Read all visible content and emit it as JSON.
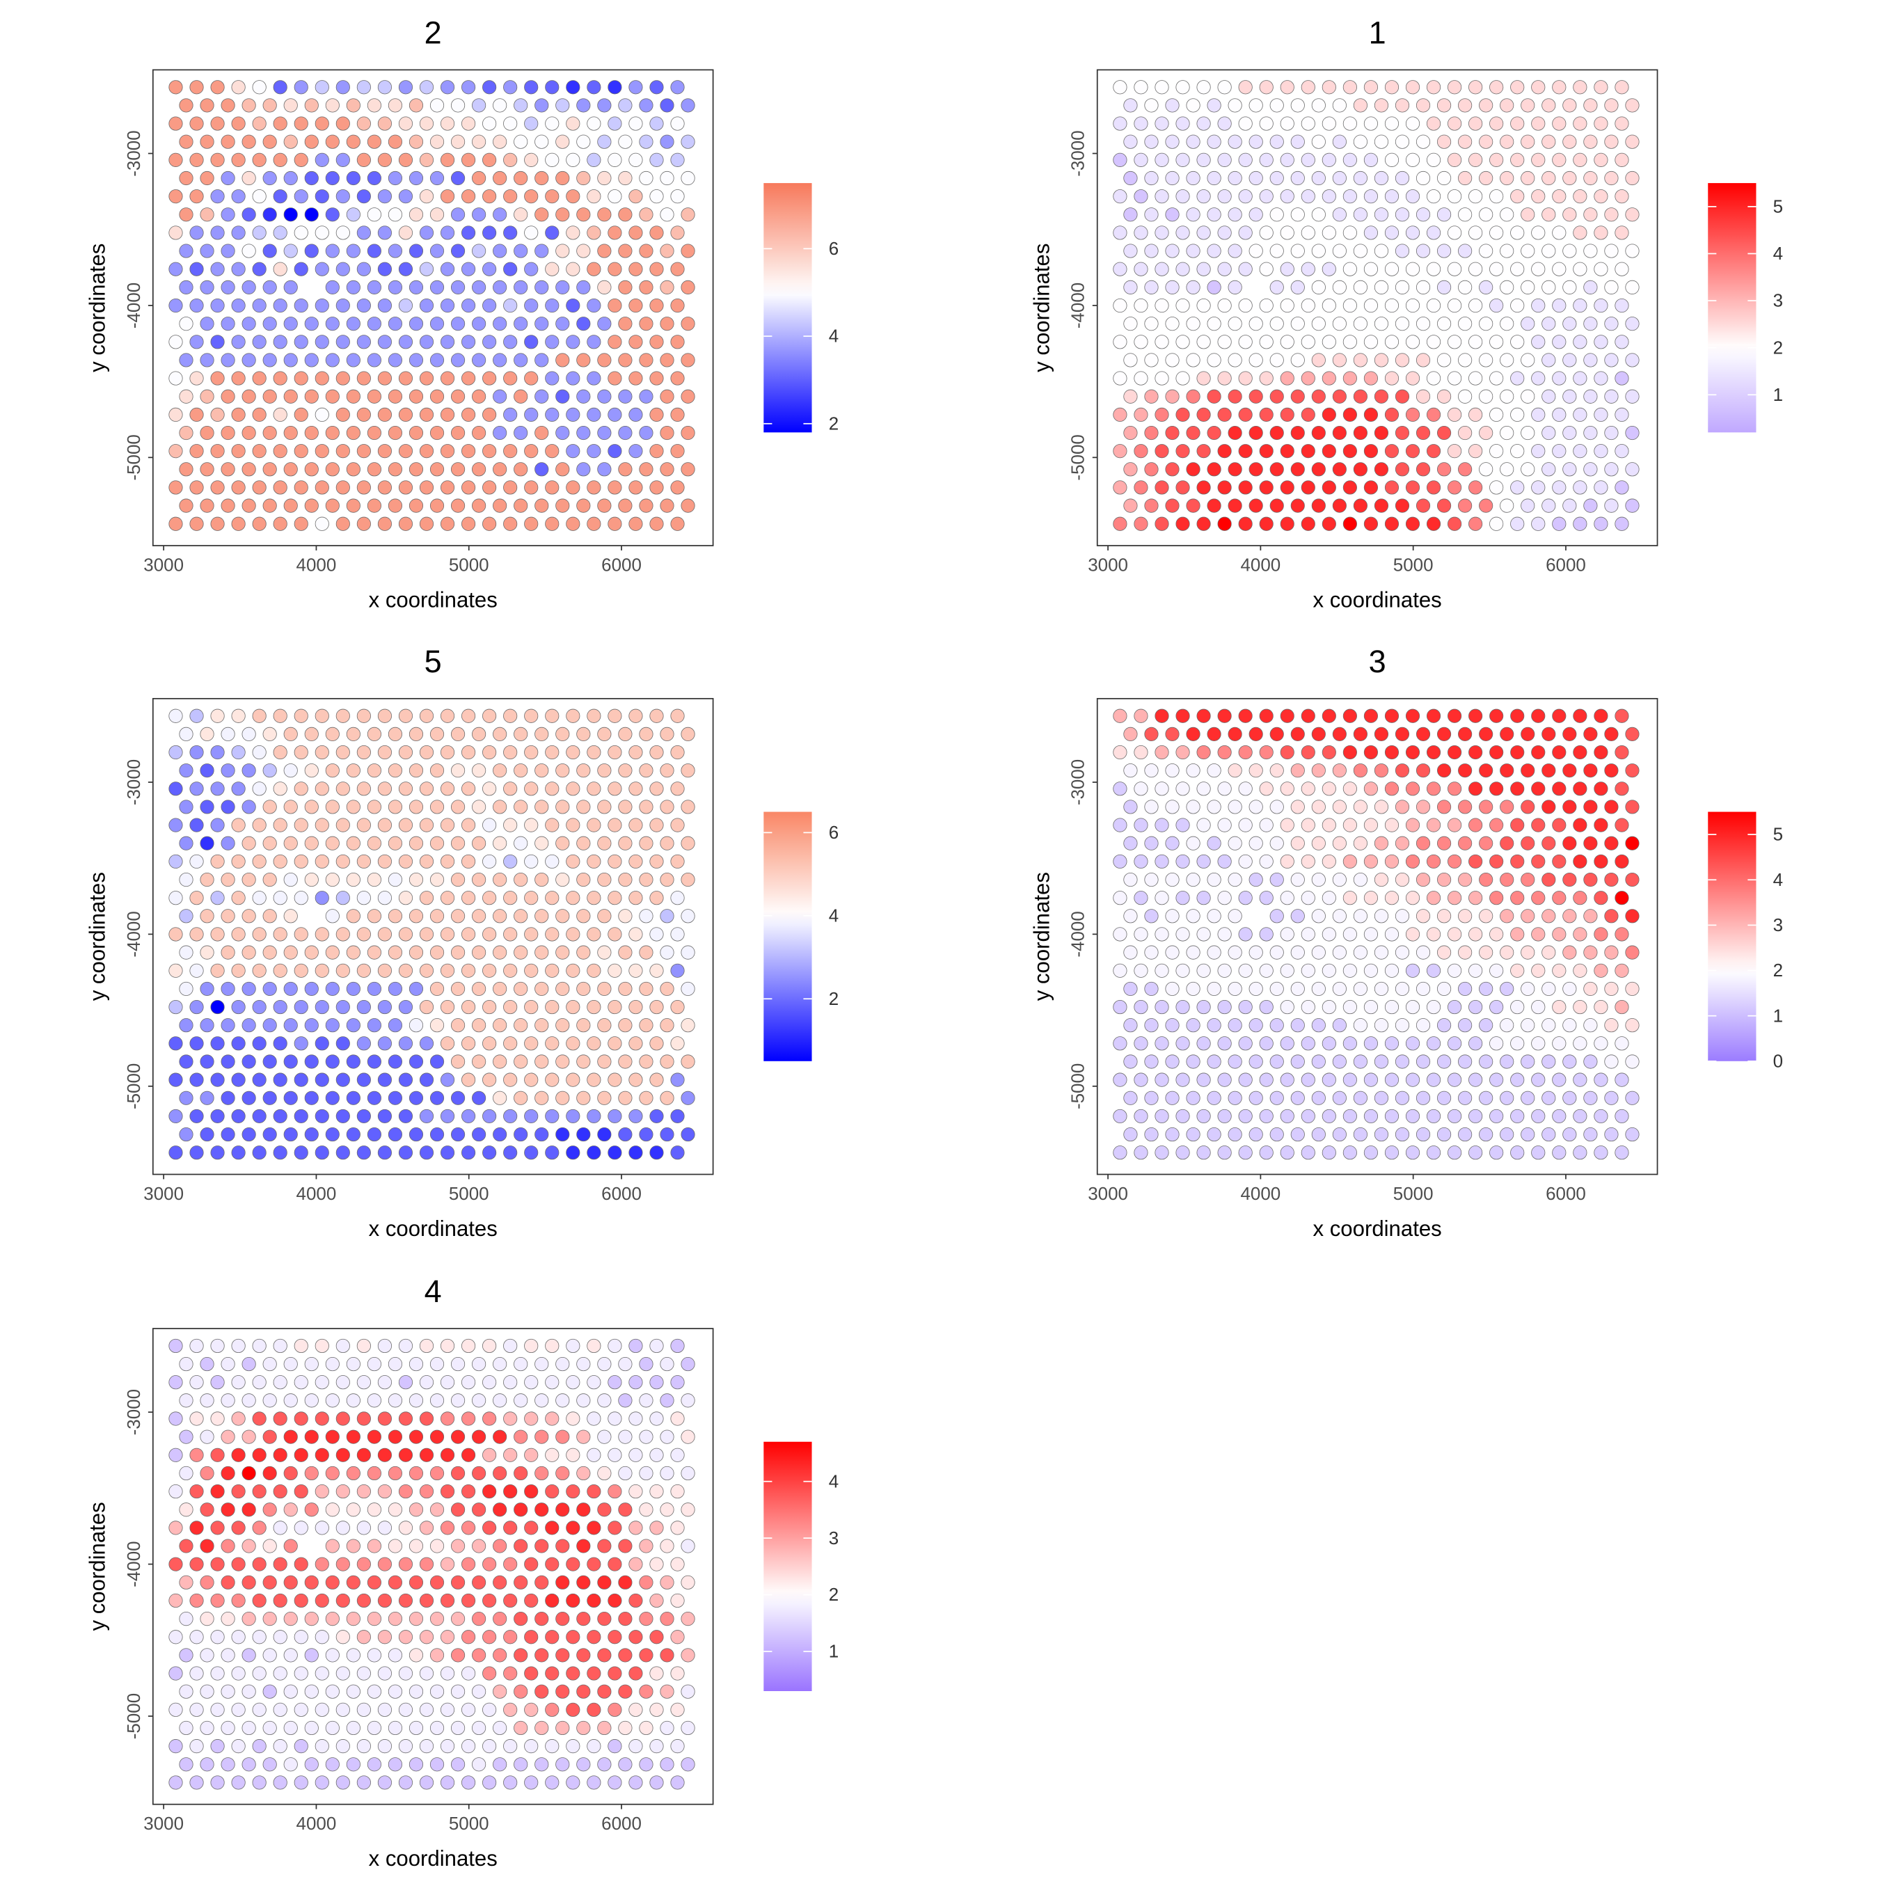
{
  "chart_data": {
    "type": "scatter",
    "layout_note_grid": "hexagonal spot grid; odd rows shifted by half x_step",
    "grid": {
      "x_start": 3079,
      "x_step": 137,
      "y_start": -2564,
      "y_step": -119.7,
      "rows": 25,
      "cols": 25
    },
    "level_encoding": "each digit 0-9 maps linearly from limits[0] to limits[1]; '-' = no spot",
    "xlabel": "x coordinates",
    "ylabel": "y coordinates",
    "xlim": [
      2930,
      6600
    ],
    "ylim": [
      -5580,
      -2450
    ],
    "xticks": [
      3000,
      4000,
      5000,
      6000
    ],
    "yticks": [
      -3000,
      -4000,
      -5000
    ],
    "panels": [
      {
        "title": "2",
        "limits": [
          1.8,
          7.5
        ],
        "midpoint": 5,
        "low": "#0000ff",
        "high": "#f7795b",
        "ticks": [
          2,
          4,
          6
        ],
        "rows": [
          "8886523434434332322121323",
          "8887767676675545434334323",
          "8888788887766665545654545",
          "8888878888876666556545434",
          "8888888338887888765545544",
          "8836332222333288888766555",
          "8833523232336888888865755",
          "8732100245566333688888757",
          "6333445553363322252678887",
          "3335242332323243336688878",
          "3233262333224333236688888",
          "333333-333333333333368878",
          "3333333333343333433238888",
          "5333333333333333333238888",
          "5323333333333333323338888",
          "3333333333333333338888888",
          "5688888888888888883338888",
          "6788888888888883832333388",
          "6878868588888888333333388",
          "7888888888888883383333388",
          "7888888888888888888332388",
          "8888888888888888828338888",
          "8888888888888888888888888",
          "8888888888888888888888888",
          "8888888588888888888888888"
        ]
      },
      {
        "title": "1",
        "limits": [
          0.2,
          5.5
        ],
        "midpoint": 2,
        "low": "#c0a8ff",
        "high": "#ff0000",
        "ticks": [
          1,
          2,
          3,
          4,
          5
        ],
        "rows": [
          "3333334444444444444444444",
          "2323233333344444444444444",
          "2222223333333334444444444",
          "2222222223233334444444444",
          "1222222222222333444444444",
          "1222222222222233444444444",
          "2122222222222223333444444",
          "1212222333222222333444444",
          "2222222333332222333333444",
          "2222223333333222233333333",
          "2222222322233333333333333",
          "222212-223333332323333233",
          "3333333333333333332322222",
          "3333333333333333333222222",
          "3333333333333333333322222",
          "3333333334444443333322222",
          "3333444455555443333222221",
          "4556777777777744333322222",
          "5567777777888766443322222",
          "5677788888888777443322221",
          "5677788888888777443322222",
          "5678888888888776633322222",
          "5677888888888777663222221",
          "5677888888888877663222121",
          "6678898888898888763221111"
        ]
      },
      {
        "title": "5",
        "limits": [
          0.5,
          6.5
        ],
        "midpoint": 4,
        "low": "#0000ff",
        "high": "#f98766",
        "ticks": [
          2,
          4,
          6
        ],
        "rows": [
          "5466777777777777777777777",
          "5655677777777777777777777",
          "4334577777777777777777777",
          "3233456777777667777777777",
          "2333567777777776777777777",
          "3223777777777767777777777",
          "3237777777777775667777777",
          "3137777777777776567777777",
          "4577777777777775455777777",
          "5777756666566777776777777",
          "5747555345567777777777775",
          "477776-577777777777776545",
          "7777777777777777777777655",
          "5677777777777777777767755",
          "6577777777777777777776663",
          "5333333333337777777777775",
          "4303333333337777777777777",
          "3333333333356777777777776",
          "2222223223333777777777776",
          "2222222222222777777777777",
          "2222222222222377777777773",
          "3322222222222226777777773",
          "3222222222223333333333322",
          "3222222222222222221112222",
          "2222222222222222222111112"
        ]
      },
      {
        "title": "3",
        "limits": [
          0,
          5.5
        ],
        "midpoint": 2,
        "low": "#9b7cff",
        "high": "#ff0000",
        "ticks": [
          0,
          1,
          2,
          3,
          4,
          5
        ],
        "rows": [
          "5588888888888888888888887",
          "5778888888888888888888887",
          "4455666677788888888888887",
          "3333344455566778888888887",
          "2333333444445666688888887",
          "2333333344444556666788887",
          "2222333344444455566777887",
          "2223233344445566667778889",
          "2222223344455566677777888",
          "3333332233334455566677777",
          "3232232233344445556666679",
          "323333-223333344445555578",
          "3333332233333344444555566",
          "3333333333333334444445556",
          "3333333333333322333444455",
          "2233333333333333222333444",
          "2222222233333333222334445",
          "2222222222233332223333344",
          "2222222222222222223333333",
          "2222222222222222222222233",
          "2222222222222222222222222",
          "2222222222222222222222222",
          "2222222222222222222222222",
          "2222222222222222222222222",
          "2222222222222222222222222"
        ]
      },
      {
        "title": "4",
        "limits": [
          0.3,
          4.7
        ],
        "midpoint": 2,
        "low": "#9a74ff",
        "high": "#ff0000",
        "ticks": [
          1,
          2,
          3,
          4
        ],
        "rows": [
          "2333334434334444344343232",
          "3232333333333333333333232",
          "2323333333323333333332222",
          "3333333333333333333332323",
          "2445777777777666555433334",
          "2355788888888888666533334",
          "2678888888888885554433333",
          "3689876666666777766543333",
          "3787777555566778887776444",
          "4788656444455778888877444",
          "5877633333345667778887554",
          "786546-555444556777877543",
          "7777777666666566677777544",
          "5677777777777777778888654",
          "5666777777777777778888754",
          "3445555555555566777777665",
          "3333333345555566677777775",
          "2332332333345666777777775",
          "2333333333333336677777744",
          "3333233333333335677777653",
          "3333333333333333556776444",
          "3333333333333333555554433",
          "2323232333333333333332333",
          "2222232222222232222222222",
          "2222222222222222222222222"
        ]
      }
    ]
  }
}
